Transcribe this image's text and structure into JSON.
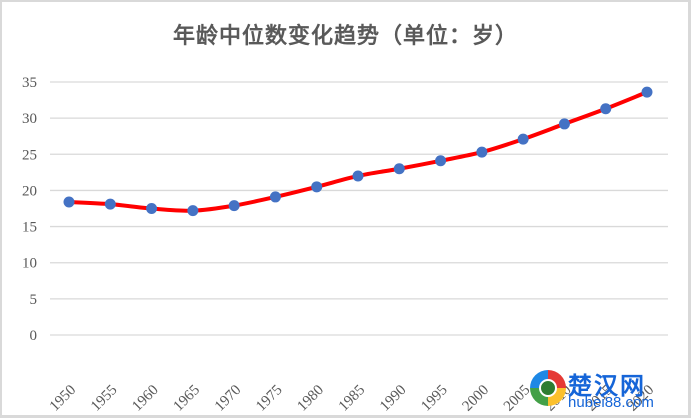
{
  "title": "年龄中位数变化趋势（单位：岁）",
  "watermark": {
    "name": "楚汉网",
    "url_text": "hubei88.com"
  },
  "colors": {
    "line": "#ff0000",
    "marker": "#4472c4",
    "grid": "#d9d9d9",
    "text": "#595959"
  },
  "chart_data": {
    "type": "line",
    "title": "年龄中位数变化趋势（单位：岁）",
    "xlabel": "",
    "ylabel": "",
    "categories": [
      "1950",
      "1955",
      "1960",
      "1965",
      "1970",
      "1975",
      "1980",
      "1985",
      "1990",
      "1995",
      "2000",
      "2005",
      "2010",
      "2015",
      "2020"
    ],
    "series": [
      {
        "name": "年龄中位数",
        "values": [
          18.4,
          18.1,
          17.5,
          17.2,
          17.9,
          19.1,
          20.5,
          22.0,
          23.0,
          24.1,
          25.3,
          27.1,
          29.2,
          31.3,
          33.6
        ]
      }
    ],
    "ylim": [
      0,
      35
    ],
    "yticks": [
      0,
      5,
      10,
      15,
      20,
      25,
      30,
      35
    ],
    "grid": true,
    "legend": "none",
    "smooth": true
  }
}
